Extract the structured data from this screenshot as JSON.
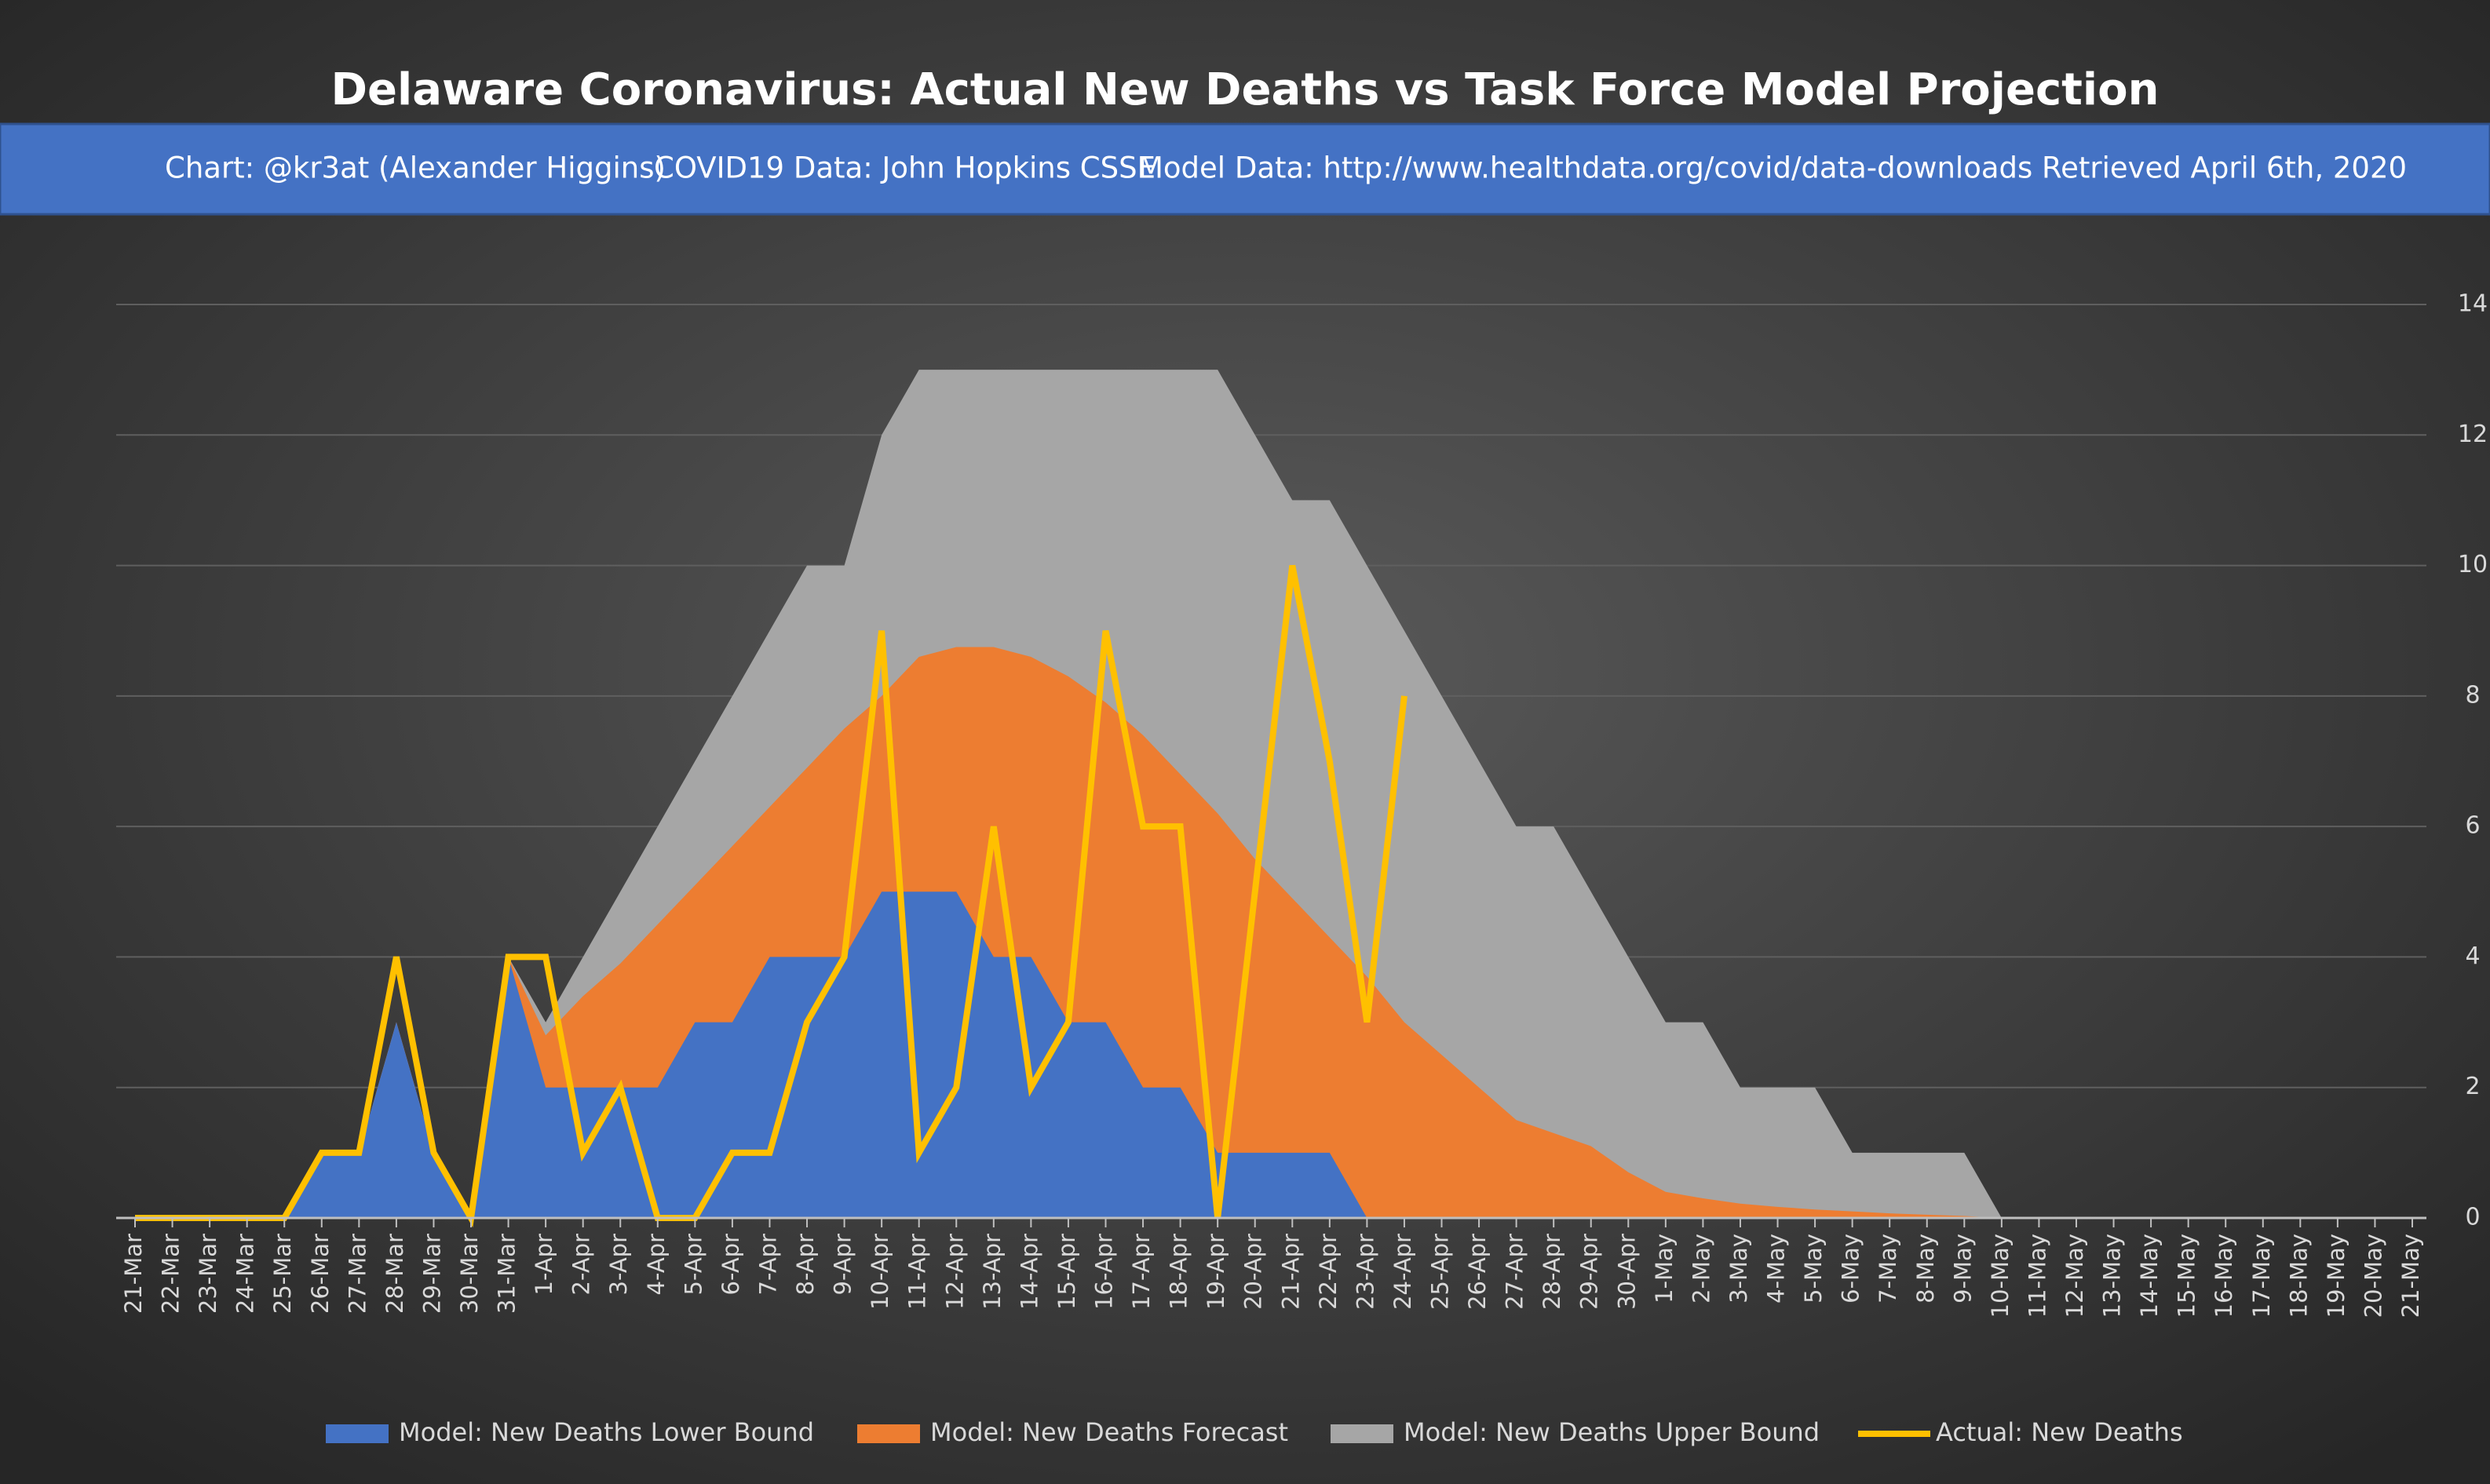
{
  "chart_data": {
    "type": "area-line",
    "title": "Delaware Coronavirus: Actual New Deaths vs Task Force Model Projection",
    "subtitle": [
      "Chart: @kr3at (Alexander Higgins)",
      "COVID19 Data: John Hopkins CSSE",
      "Model Data: http://www.healthdata.org/covid/data-downloads Retrieved April 6th, 2020"
    ],
    "categories": [
      "21-Mar",
      "22-Mar",
      "23-Mar",
      "24-Mar",
      "25-Mar",
      "26-Mar",
      "27-Mar",
      "28-Mar",
      "29-Mar",
      "30-Mar",
      "31-Mar",
      "1-Apr",
      "2-Apr",
      "3-Apr",
      "4-Apr",
      "5-Apr",
      "6-Apr",
      "7-Apr",
      "8-Apr",
      "9-Apr",
      "10-Apr",
      "11-Apr",
      "12-Apr",
      "13-Apr",
      "14-Apr",
      "15-Apr",
      "16-Apr",
      "17-Apr",
      "18-Apr",
      "19-Apr",
      "20-Apr",
      "21-Apr",
      "22-Apr",
      "23-Apr",
      "24-Apr",
      "25-Apr",
      "26-Apr",
      "27-Apr",
      "28-Apr",
      "29-Apr",
      "30-Apr",
      "1-May",
      "2-May",
      "3-May",
      "4-May",
      "5-May",
      "6-May",
      "7-May",
      "8-May",
      "9-May",
      "10-May",
      "11-May",
      "12-May",
      "13-May",
      "14-May",
      "15-May",
      "16-May",
      "17-May",
      "18-May",
      "19-May",
      "20-May",
      "21-May"
    ],
    "series": [
      {
        "name": "Model: New Deaths Upper Bound",
        "kind": "area",
        "color": "#a6a6a6",
        "values": [
          0,
          0,
          0,
          0,
          0,
          1,
          1,
          3,
          1,
          0,
          4,
          3,
          4,
          5,
          6,
          7,
          8,
          9,
          10,
          10,
          12,
          13,
          13,
          13,
          13,
          13,
          13,
          13,
          13,
          13,
          12,
          11,
          11,
          10,
          9,
          8,
          7,
          6,
          6,
          5,
          4,
          3,
          3,
          2,
          2,
          2,
          1,
          1,
          1,
          1,
          0,
          0,
          0,
          0,
          0,
          0,
          0,
          0,
          0,
          0,
          0,
          0
        ]
      },
      {
        "name": "Model: New Deaths Forecast",
        "kind": "area",
        "color": "#ed7d31",
        "values": [
          0,
          0,
          0,
          0,
          0,
          1,
          1,
          3,
          1,
          0,
          4,
          2.8,
          3.4,
          3.9,
          4.5,
          5.1,
          5.7,
          6.3,
          6.9,
          7.5,
          8.0,
          8.6,
          8.75,
          8.75,
          8.6,
          8.3,
          7.9,
          7.4,
          6.8,
          6.2,
          5.5,
          4.9,
          4.3,
          3.7,
          3.0,
          2.5,
          2.0,
          1.5,
          1.3,
          1.1,
          0.7,
          0.4,
          0.3,
          0.22,
          0.17,
          0.13,
          0.1,
          0.07,
          0.05,
          0.03,
          0,
          0,
          0,
          0,
          0,
          0,
          0,
          0,
          0,
          0,
          0,
          0
        ]
      },
      {
        "name": "Model: New Deaths Lower Bound",
        "kind": "area",
        "color": "#4472c4",
        "values": [
          0,
          0,
          0,
          0,
          0,
          1,
          1,
          3,
          1,
          0,
          4,
          2,
          2,
          2,
          2,
          3,
          3,
          4,
          4,
          4,
          5,
          5,
          5,
          4,
          4,
          3,
          3,
          2,
          2,
          1,
          1,
          1,
          1,
          0,
          0,
          0,
          0,
          0,
          0,
          0,
          0,
          0,
          0,
          0,
          0,
          0,
          0,
          0,
          0,
          0,
          0,
          0,
          0,
          0,
          0,
          0,
          0,
          0,
          0,
          0,
          0,
          0
        ]
      },
      {
        "name": "Actual: New Deaths",
        "kind": "line",
        "color": "#ffc000",
        "values": [
          0,
          0,
          0,
          0,
          0,
          1,
          1,
          4,
          1,
          0,
          4,
          4,
          1,
          2,
          0,
          0,
          1,
          1,
          3,
          4,
          9,
          1,
          2,
          6,
          2,
          3,
          9,
          6,
          6,
          0,
          5,
          10,
          7,
          3,
          8,
          null,
          null,
          null,
          null,
          null,
          null,
          null,
          null,
          null,
          null,
          null,
          null,
          null,
          null,
          null,
          null,
          null,
          null,
          null,
          null,
          null,
          null,
          null,
          null,
          null,
          null,
          null
        ]
      }
    ],
    "legend_order": [
      2,
      1,
      0,
      3
    ],
    "ylim": [
      0,
      14
    ],
    "yticks": [
      0,
      2,
      4,
      6,
      8,
      10,
      12,
      14
    ],
    "grid": true,
    "y_axis_side": "right",
    "legend": "bottom"
  }
}
